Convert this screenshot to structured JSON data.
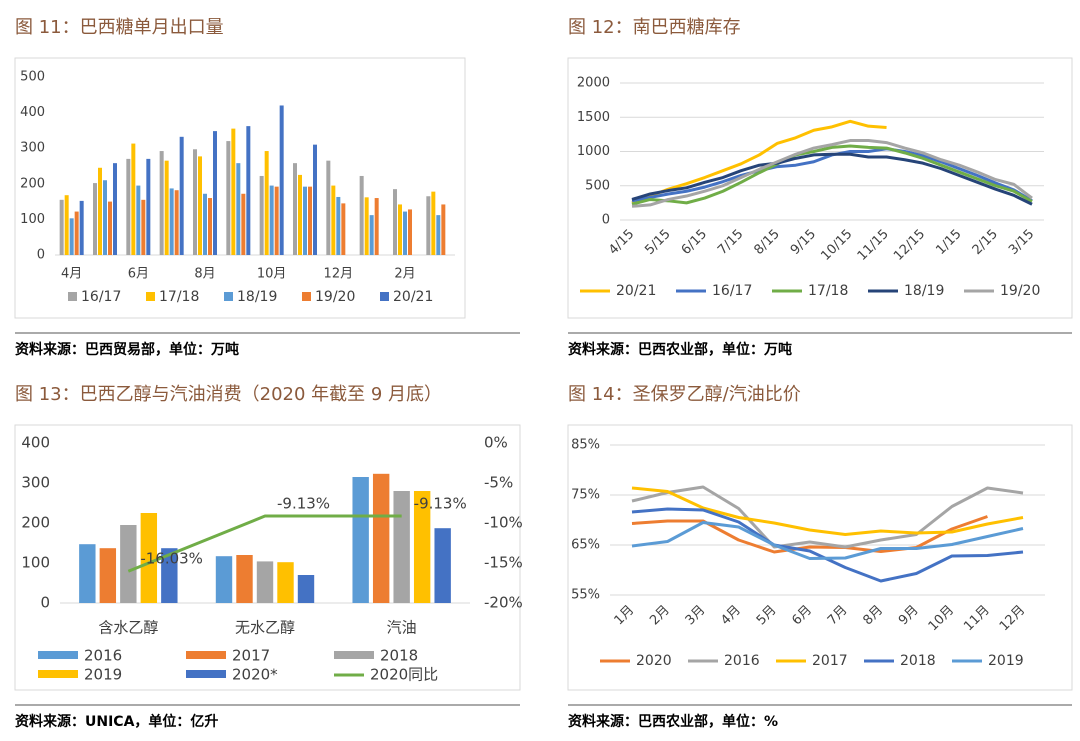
{
  "chart_data": [
    {
      "type": "bar",
      "title": "图 11：巴西糖单月出口量",
      "source": "资料来源：巴西贸易部，单位：万吨",
      "categories": [
        "4月",
        null,
        "6月",
        null,
        "8月",
        null,
        "10月",
        null,
        "12月",
        null,
        "2月",
        null
      ],
      "series": [
        {
          "name": "16/17",
          "color": "#a5a5a5",
          "values": [
            155,
            202,
            270,
            292,
            297,
            320,
            222,
            258,
            265,
            222,
            185,
            165
          ]
        },
        {
          "name": "17/18",
          "color": "#ffc000",
          "values": [
            168,
            245,
            313,
            265,
            277,
            355,
            292,
            225,
            195,
            162,
            142,
            178
          ]
        },
        {
          "name": "18/19",
          "color": "#5b9bd5",
          "values": [
            103,
            210,
            195,
            187,
            172,
            258,
            195,
            192,
            163,
            112,
            122,
            112
          ]
        },
        {
          "name": "19/20",
          "color": "#ed7d31",
          "values": [
            122,
            150,
            155,
            182,
            160,
            172,
            192,
            192,
            145,
            160,
            128,
            142
          ]
        },
        {
          "name": "20/21",
          "color": "#4472c4",
          "values": [
            152,
            258,
            270,
            332,
            348,
            362,
            420,
            310,
            null,
            null,
            null,
            null
          ]
        }
      ],
      "ylim": [
        0,
        500
      ],
      "yticks": [
        0,
        100,
        200,
        300,
        400,
        500
      ],
      "grid": false
    },
    {
      "type": "line",
      "title": "图 12：南巴西糖库存",
      "source": "资料来源：巴西农业部，单位：万吨",
      "categories": [
        "4/15",
        null,
        "5/15",
        null,
        "6/15",
        null,
        "7/15",
        null,
        "8/15",
        null,
        "9/15",
        null,
        "10/15",
        null,
        "11/15",
        null,
        "12/15",
        null,
        "1/15",
        null,
        "2/15",
        null,
        "3/15"
      ],
      "series": [
        {
          "name": "20/21",
          "color": "#ffc000",
          "values": [
            250,
            350,
            450,
            530,
            620,
            720,
            820,
            950,
            1120,
            1200,
            1310,
            1360,
            1440,
            1370,
            1350,
            null,
            null,
            null,
            null,
            null,
            null,
            null,
            null
          ]
        },
        {
          "name": "16/17",
          "color": "#4472c4",
          "values": [
            280,
            330,
            380,
            420,
            480,
            560,
            650,
            720,
            780,
            800,
            850,
            950,
            1000,
            1000,
            1040,
            1000,
            940,
            850,
            750,
            650,
            540,
            440,
            280
          ]
        },
        {
          "name": "17/18",
          "color": "#70ad47",
          "values": [
            230,
            300,
            280,
            250,
            320,
            420,
            550,
            690,
            820,
            950,
            1000,
            1060,
            1080,
            1060,
            1050,
            980,
            900,
            800,
            700,
            600,
            500,
            420,
            270
          ]
        },
        {
          "name": "18/19",
          "color": "#264478",
          "values": [
            300,
            380,
            430,
            470,
            550,
            620,
            720,
            800,
            830,
            900,
            950,
            960,
            960,
            920,
            920,
            880,
            830,
            750,
            650,
            550,
            450,
            360,
            230
          ]
        },
        {
          "name": "19/20",
          "color": "#a5a5a5",
          "values": [
            200,
            220,
            300,
            350,
            420,
            500,
            620,
            740,
            850,
            960,
            1050,
            1100,
            1160,
            1160,
            1130,
            1050,
            980,
            880,
            800,
            700,
            590,
            520,
            320
          ]
        }
      ],
      "ylim": [
        0,
        2000
      ],
      "yticks": [
        0,
        500,
        1000,
        1500,
        2000
      ],
      "grid": true
    },
    {
      "type": "bar",
      "title": "图 13：巴西乙醇与汽油消费（2020 年截至 9 月底）",
      "source": "资料来源：UNICA，单位：亿升",
      "categories": [
        "含水乙醇",
        "无水乙醇",
        "汽油"
      ],
      "series": [
        {
          "name": "2016",
          "color": "#5b9bd5",
          "values": [
            147,
            117,
            315
          ]
        },
        {
          "name": "2017",
          "color": "#ed7d31",
          "values": [
            137,
            120,
            323
          ]
        },
        {
          "name": "2018",
          "color": "#a5a5a5",
          "values": [
            195,
            104,
            280
          ]
        },
        {
          "name": "2019",
          "color": "#ffc000",
          "values": [
            225,
            102,
            280
          ]
        },
        {
          "name": "2020*",
          "color": "#4472c4",
          "values": [
            137,
            70,
            187
          ]
        },
        {
          "name": "2020同比",
          "color": "#70ad47",
          "type": "line",
          "axis": "y2",
          "values": [
            -16.03,
            -9.13,
            -9.13
          ],
          "value_labels": [
            "-16.03%",
            "-9.13%",
            "-9.13%"
          ]
        }
      ],
      "ylim": [
        0,
        400
      ],
      "yticks": [
        0,
        100,
        200,
        300,
        400
      ],
      "y2lim": [
        -20,
        0
      ],
      "y2ticks": [
        {
          "value": 0,
          "label": "0%"
        },
        {
          "value": -5,
          "label": "-5%"
        },
        {
          "value": -10,
          "label": "-10%"
        },
        {
          "value": -15,
          "label": "-15%"
        },
        {
          "value": -20,
          "label": "-20%"
        }
      ],
      "grid": false
    },
    {
      "type": "line",
      "title": "图 14：圣保罗乙醇/汽油比价",
      "source": "资料来源：巴西农业部，单位：%",
      "categories": [
        "1月",
        "2月",
        "3月",
        "4月",
        "5月",
        "6月",
        "7月",
        "8月",
        "9月",
        "10月",
        "11月",
        "12月"
      ],
      "series": [
        {
          "name": "2020",
          "color": "#ed7d31",
          "values": [
            69.3,
            69.8,
            69.8,
            66,
            63.6,
            64.6,
            64.5,
            63.7,
            64.5,
            68.2,
            70.7,
            null
          ]
        },
        {
          "name": "2016",
          "color": "#a5a5a5",
          "values": [
            73.8,
            75.5,
            76.6,
            72.3,
            64.6,
            65.6,
            64.6,
            66,
            67.1,
            72.7,
            76.4,
            75.4
          ]
        },
        {
          "name": "2017",
          "color": "#ffc000",
          "values": [
            76.4,
            75.7,
            72.4,
            70.5,
            69.4,
            68,
            67.1,
            67.8,
            67.4,
            67.6,
            69.2,
            70.5
          ]
        },
        {
          "name": "2018",
          "color": "#4472c4",
          "values": [
            71.6,
            72.2,
            72,
            69.6,
            65,
            63.8,
            60.5,
            57.8,
            59.3,
            62.8,
            62.9,
            63.6
          ]
        },
        {
          "name": "2019",
          "color": "#5b9bd5",
          "values": [
            64.8,
            65.7,
            69.5,
            68.6,
            65,
            62.3,
            62.4,
            64.3,
            64.3,
            65.1,
            66.7,
            68.3
          ]
        }
      ],
      "ylim": [
        55,
        85
      ],
      "yticks": [
        {
          "value": 55,
          "label": "55%"
        },
        {
          "value": 65,
          "label": "65%"
        },
        {
          "value": 75,
          "label": "75%"
        },
        {
          "value": 85,
          "label": "85%"
        }
      ],
      "grid": true
    }
  ]
}
